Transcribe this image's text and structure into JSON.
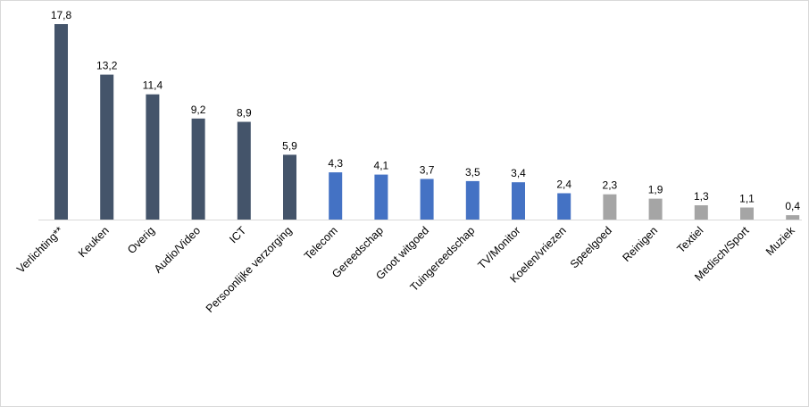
{
  "chart_data": {
    "type": "bar",
    "title": "",
    "xlabel": "",
    "ylabel": "",
    "ylim": [
      0,
      17.8
    ],
    "grid": false,
    "legend": "none",
    "categories": [
      "Verlichting**",
      "Keuken",
      "Overig",
      "Audio/Video",
      "ICT",
      "Persoonlijke verzorging",
      "Telecom",
      "Gereedschap",
      "Groot witgoed",
      "Tuingereedschap",
      "TV/Monitor",
      "Koelen/vriezen",
      "Speelgoed",
      "Reinigen",
      "Textiel",
      "Medisch/Sport",
      "Muziek"
    ],
    "values": [
      17.8,
      13.2,
      11.4,
      9.2,
      8.9,
      5.9,
      4.3,
      4.1,
      3.7,
      3.5,
      3.4,
      2.4,
      2.3,
      1.9,
      1.3,
      1.1,
      0.4
    ],
    "value_labels": [
      "17,8",
      "13,2",
      "11,4",
      "9,2",
      "8,9",
      "5,9",
      "4,3",
      "4,1",
      "3,7",
      "3,5",
      "3,4",
      "2,4",
      "2,3",
      "1,9",
      "1,3",
      "1,1",
      "0,4"
    ],
    "colors": [
      "#44546a",
      "#44546a",
      "#44546a",
      "#44546a",
      "#44546a",
      "#44546a",
      "#4472c4",
      "#4472c4",
      "#4472c4",
      "#4472c4",
      "#4472c4",
      "#4472c4",
      "#a5a5a5",
      "#a5a5a5",
      "#a5a5a5",
      "#a5a5a5",
      "#a5a5a5"
    ],
    "axis_color": "#d9d9d9"
  }
}
